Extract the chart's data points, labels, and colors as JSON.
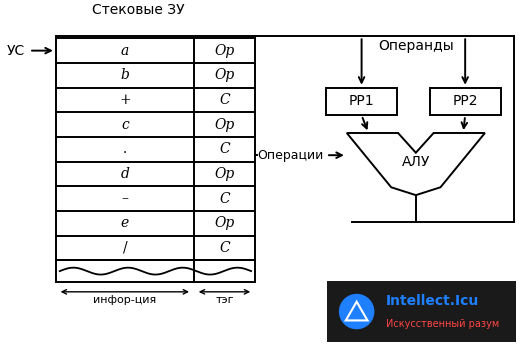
{
  "title": "Стековые ЗУ",
  "operands_label": "Операнды",
  "operations_label": "Операции",
  "uc_label": "УС",
  "alu_label": "АЛУ",
  "pp1_label": "РР1",
  "pp2_label": "РР2",
  "info_label": "инфор-ция",
  "tag_label": "тэг",
  "rows": [
    [
      "a",
      "Op"
    ],
    [
      "b",
      "Op"
    ],
    [
      "+",
      "C"
    ],
    [
      "c",
      "Op"
    ],
    [
      ".",
      "C"
    ],
    [
      "d",
      "Op"
    ],
    [
      "–",
      "C"
    ],
    [
      "e",
      "Op"
    ],
    [
      "/",
      "C"
    ]
  ],
  "bg_color": "#ffffff",
  "box_color": "#000000",
  "text_color": "#000000",
  "watermark_bg": "#1a1a1a",
  "wm_blue": "#1e7fff",
  "wm_text1": "#1e7fff",
  "wm_text2": "#ff4444"
}
